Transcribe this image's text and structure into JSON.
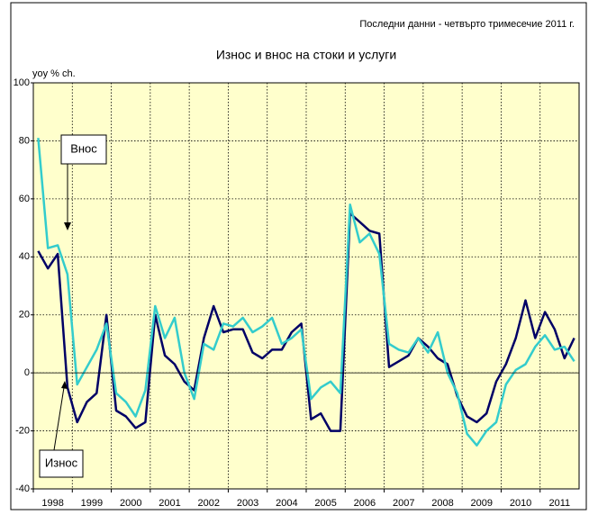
{
  "chart_data": {
    "type": "line",
    "subtitle": "Последни данни - четвърто тримесечие 2011 г.",
    "title": "Износ и внос на стоки и услуги",
    "y_label": "yoy % ch.",
    "categories": [
      "1998",
      null,
      null,
      null,
      "1999",
      null,
      null,
      null,
      "2000",
      null,
      null,
      null,
      "2001",
      null,
      null,
      null,
      "2002",
      null,
      null,
      null,
      "2003",
      null,
      null,
      null,
      "2004",
      null,
      null,
      null,
      "2005",
      null,
      null,
      null,
      "2006",
      null,
      null,
      null,
      "2007",
      null,
      null,
      null,
      "2008",
      null,
      null,
      null,
      "2009",
      null,
      null,
      null,
      "2010",
      null,
      null,
      null,
      "2011",
      null,
      null,
      null
    ],
    "series": [
      {
        "name": "Износ",
        "color": "#000066",
        "values": [
          42,
          36,
          41,
          -5,
          -17,
          -10,
          -7,
          20,
          -13,
          -15,
          -19,
          -17,
          20,
          6,
          3,
          -3,
          -6,
          12,
          23,
          14,
          15,
          15,
          7,
          5,
          8,
          8,
          14,
          17,
          -16,
          -14,
          -20,
          -20,
          55,
          52,
          49,
          48,
          2,
          4,
          6,
          12,
          9,
          5,
          3,
          -8,
          -15,
          -17,
          -14,
          -3,
          3,
          12,
          25,
          12,
          21,
          15,
          5,
          12
        ]
      },
      {
        "name": "Внос",
        "color": "#33cccc",
        "values": [
          81,
          43,
          44,
          34,
          -4,
          2,
          8,
          17,
          -7,
          -10,
          -15,
          -6,
          23,
          12,
          19,
          0,
          -9,
          10,
          8,
          17,
          16,
          19,
          14,
          16,
          19,
          10,
          12,
          15,
          -9,
          -5,
          -3,
          -7,
          58,
          45,
          48,
          41,
          10,
          8,
          7,
          12,
          7,
          14,
          0,
          -7,
          -21,
          -25,
          -20,
          -17,
          -4,
          1,
          3,
          9,
          13,
          8,
          9,
          4
        ]
      }
    ],
    "ylim": [
      -40,
      100
    ],
    "yticks": [
      -40,
      -20,
      0,
      20,
      40,
      60,
      80,
      100
    ],
    "grid": true,
    "plot_background": "#ffffcc"
  }
}
